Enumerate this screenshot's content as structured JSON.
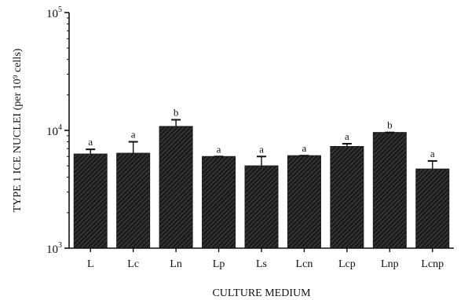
{
  "chart_data": {
    "type": "bar",
    "title": "",
    "xlabel": "CULTURE MEDIUM",
    "ylabel": "TYPE 1 ICE NUCLEI (per 10⁹ cells)",
    "y_scale": "log",
    "ylim": [
      1000,
      100000
    ],
    "y_ticks": [
      {
        "value": 1000,
        "base": "10",
        "exp": "3"
      },
      {
        "value": 10000,
        "base": "10",
        "exp": "4"
      },
      {
        "value": 100000,
        "base": "10",
        "exp": "5"
      }
    ],
    "grid": false,
    "categories": [
      "L",
      "Lc",
      "Ln",
      "Lp",
      "Ls",
      "Lcn",
      "Lcp",
      "Lnp",
      "Lcnp"
    ],
    "values": [
      6300,
      6400,
      10800,
      6000,
      5000,
      6100,
      7300,
      9600,
      4700
    ],
    "error_upper": [
      6900,
      8000,
      12300,
      6000,
      6000,
      6100,
      7700,
      9600,
      5500
    ],
    "significance_labels": [
      "a",
      "a",
      "b",
      "a",
      "a",
      "a",
      "a",
      "b",
      "a"
    ],
    "bar_color": "#1c1c1c"
  }
}
